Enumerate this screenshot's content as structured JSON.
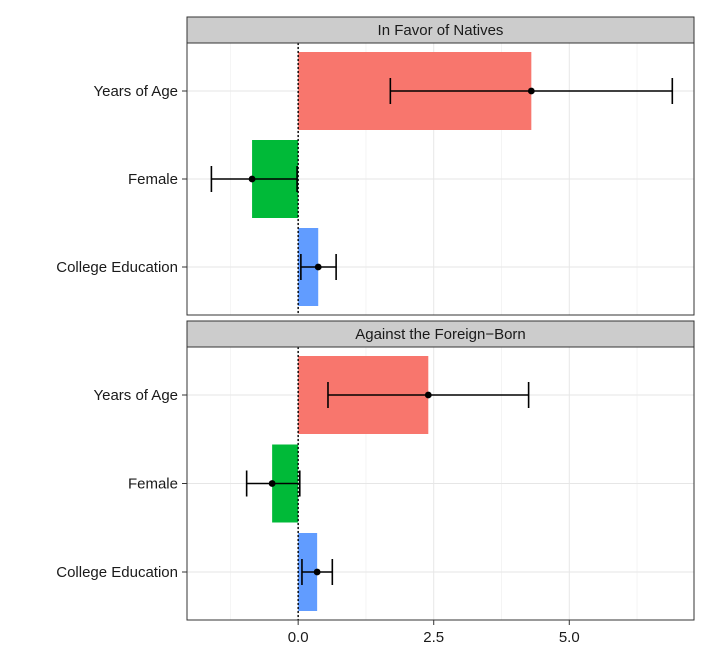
{
  "chart_data": {
    "type": "bar",
    "orientation": "horizontal",
    "facets": [
      "In Favor of Natives",
      "Against the Foreign−Born"
    ],
    "categories": [
      "Years of Age",
      "Female",
      "College Education"
    ],
    "x_ticks": [
      0.0,
      2.5,
      5.0
    ],
    "x_tick_labels": [
      "0.0",
      "2.5",
      "5.0"
    ],
    "xlim": [
      -2.05,
      7.3
    ],
    "reference_line": 0,
    "grid": true,
    "colors": {
      "Years of Age": "#F8766D",
      "Female": "#00BA38",
      "College Education": "#619CFF"
    },
    "panels": [
      {
        "title": "In Favor of Natives",
        "values": [
          4.3,
          -0.85,
          0.37
        ],
        "lower": [
          1.7,
          -1.6,
          0.05
        ],
        "upper": [
          6.9,
          -0.02,
          0.7
        ]
      },
      {
        "title": "Against the Foreign−Born",
        "values": [
          2.4,
          -0.48,
          0.35
        ],
        "lower": [
          0.55,
          -0.95,
          0.07
        ],
        "upper": [
          4.25,
          0.03,
          0.63
        ]
      }
    ]
  }
}
